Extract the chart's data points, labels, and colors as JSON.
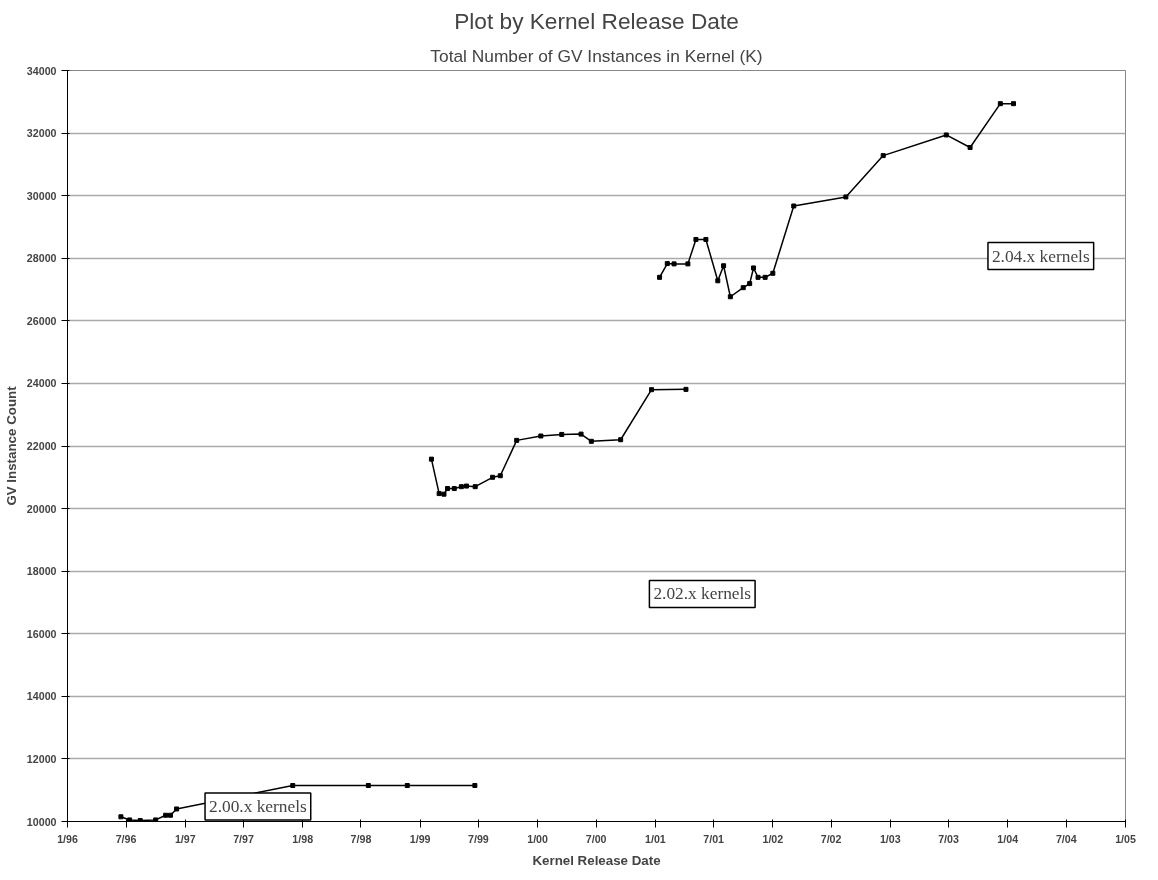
{
  "chart_data": {
    "type": "line",
    "title": "Plot by Kernel Release Date",
    "subtitle": "Total Number of GV Instances in Kernel (K)",
    "xlabel": "Kernel Release Date",
    "ylabel": "GV Instance Count",
    "annotations": [
      "2.00.x kernels",
      "2.02.x kernels",
      "2.04.x kernels"
    ],
    "series": [
      {
        "color": "#000000",
        "x": [
          "1996-06-15",
          "1996-07-12",
          "1996-08-14",
          "1996-10-01",
          "1996-11-01",
          "1996-11-16",
          "1996-12-05",
          "1997-12-01",
          "1998-07-24",
          "1998-11-22",
          "1999-06-20"
        ],
        "values": [
          10150,
          10050,
          10030,
          10050,
          10200,
          10200,
          10400,
          11150,
          11150,
          11150,
          11150
        ]
      },
      {
        "color": "#000000",
        "x": [
          "1999-02-05",
          "1999-03-01",
          "1999-03-16",
          "1999-03-27",
          "1999-04-17",
          "1999-05-09",
          "1999-05-25",
          "1999-06-21",
          "1999-08-14",
          "1999-09-07",
          "1999-10-28",
          "2000-01-11",
          "2000-03-16",
          "2000-05-15",
          "2000-06-16",
          "2000-09-15",
          "2000-12-20",
          "2001-04-06"
        ],
        "values": [
          21580,
          20480,
          20460,
          20640,
          20640,
          20700,
          20720,
          20700,
          21000,
          21050,
          22180,
          22320,
          22370,
          22380,
          22150,
          22200,
          23800,
          23810
        ]
      },
      {
        "color": "#000000",
        "x": [
          "2001-01-14",
          "2001-02-07",
          "2001-02-28",
          "2001-04-12",
          "2001-05-07",
          "2001-06-07",
          "2001-07-14",
          "2001-08-01",
          "2001-08-22",
          "2001-10-01",
          "2001-10-21",
          "2001-11-02",
          "2001-11-16",
          "2001-12-08",
          "2002-01-01",
          "2002-03-07",
          "2002-08-16",
          "2002-12-10",
          "2003-06-24",
          "2003-09-06",
          "2003-12-09",
          "2004-01-19"
        ],
        "values": [
          27390,
          27830,
          27820,
          27820,
          28600,
          28600,
          27280,
          27760,
          26770,
          27060,
          27190,
          27690,
          27390,
          27390,
          27520,
          29670,
          29960,
          31280,
          31940,
          31540,
          32940,
          32940
        ]
      }
    ],
    "xlim": [
      "1996-01",
      "2005-01"
    ],
    "xticks": [
      {
        "value": "1996-01",
        "label": "1/96"
      },
      {
        "value": "1996-07",
        "label": "7/96"
      },
      {
        "value": "1997-01",
        "label": "1/97"
      },
      {
        "value": "1997-07",
        "label": "7/97"
      },
      {
        "value": "1998-01",
        "label": "1/98"
      },
      {
        "value": "1998-07",
        "label": "7/98"
      },
      {
        "value": "1999-01",
        "label": "1/99"
      },
      {
        "value": "1999-07",
        "label": "7/99"
      },
      {
        "value": "2000-01",
        "label": "1/00"
      },
      {
        "value": "2000-07",
        "label": "7/00"
      },
      {
        "value": "2001-01",
        "label": "1/01"
      },
      {
        "value": "2001-07",
        "label": "7/01"
      },
      {
        "value": "2002-01",
        "label": "1/02"
      },
      {
        "value": "2002-07",
        "label": "7/02"
      },
      {
        "value": "2003-01",
        "label": "1/03"
      },
      {
        "value": "2003-07",
        "label": "7/03"
      },
      {
        "value": "2004-01",
        "label": "1/04"
      },
      {
        "value": "2004-07",
        "label": "7/04"
      },
      {
        "value": "2005-01",
        "label": "1/05"
      }
    ],
    "ylim": [
      10000,
      34000
    ],
    "yticks": [
      10000,
      12000,
      14000,
      16000,
      18000,
      20000,
      22000,
      24000,
      26000,
      28000,
      30000,
      32000,
      34000
    ],
    "grid": "y",
    "marker": "square",
    "line_style": "solid"
  }
}
